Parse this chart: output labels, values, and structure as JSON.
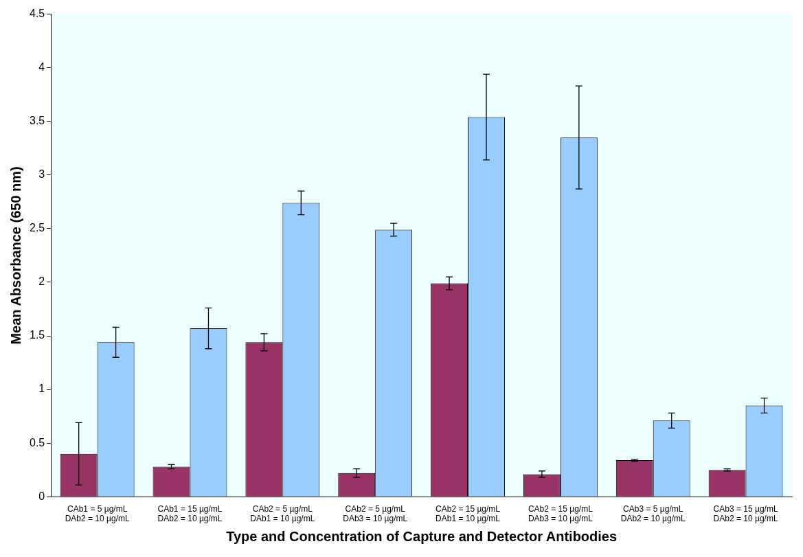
{
  "chart_data": {
    "type": "bar",
    "xlabel": "Type and Concentration of Capture and Detector Antibodies",
    "ylabel": "Mean Absorbance (650 nm)",
    "categories": [
      "CAb1 = 5 µg/mL\nDAb2 = 10 µg/mL",
      "CAb1 = 15 µg/mL\nDAb2 = 10 µg/mL",
      "CAb2 = 5 µg/mL\nDAb1 = 10 µg/mL",
      "CAb2 = 5 µg/mL\nDAb3 = 10 µg/mL",
      "CAb2 = 15 µg/mL\nDAb1 = 10 µg/mL",
      "CAb2 = 15 µg/mL\nDAb3 = 10 µg/mL",
      "CAb3 = 5 µg/mL\nDAb2 = 10 µg/mL",
      "CAb3 = 15 µg/mL\nDAb2 = 10 µg/mL"
    ],
    "series": [
      {
        "color": "#993366",
        "values": [
          0.4,
          0.28,
          1.44,
          0.22,
          1.99,
          0.21,
          0.34,
          0.25
        ],
        "errors": [
          0.29,
          0.02,
          0.08,
          0.04,
          0.06,
          0.03,
          0.01,
          0.01
        ]
      },
      {
        "color": "#99ccff",
        "values": [
          1.44,
          1.57,
          2.74,
          2.49,
          3.54,
          3.35,
          0.71,
          0.85
        ],
        "errors": [
          0.14,
          0.19,
          0.11,
          0.06,
          0.4,
          0.48,
          0.07,
          0.07
        ]
      }
    ],
    "ylim": [
      0,
      4.5
    ],
    "yticks": [
      0,
      0.5,
      1,
      1.5,
      2,
      2.5,
      3,
      3.5,
      4,
      4.5
    ],
    "grid": false,
    "legend": false
  }
}
